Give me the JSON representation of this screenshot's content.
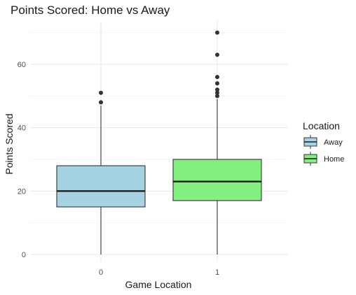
{
  "chart_data": {
    "type": "boxplot",
    "title": "Points Scored: Home vs Away",
    "xlabel": "Game Location",
    "ylabel": "Points Scored",
    "categories": [
      "0",
      "1"
    ],
    "ylim": [
      -1,
      72
    ],
    "yticks": [
      0,
      20,
      40,
      60
    ],
    "grid": true,
    "legend": {
      "title": "Location",
      "placement": "right",
      "entries": [
        {
          "label": "Away",
          "color": "#a6d3e3"
        },
        {
          "label": "Home",
          "color": "#83ef7e"
        }
      ]
    },
    "series": [
      {
        "category": "0",
        "min": 0,
        "q1": 15,
        "median": 20,
        "q3": 28,
        "max": 47,
        "outliers": [
          48,
          51
        ],
        "fill": "#a6d3e3"
      },
      {
        "category": "1",
        "min": 0,
        "q1": 17,
        "median": 23,
        "q3": 30,
        "max": 49,
        "outliers": [
          50,
          51,
          52,
          54,
          56,
          63,
          70
        ],
        "fill": "#83ef7e"
      }
    ]
  }
}
